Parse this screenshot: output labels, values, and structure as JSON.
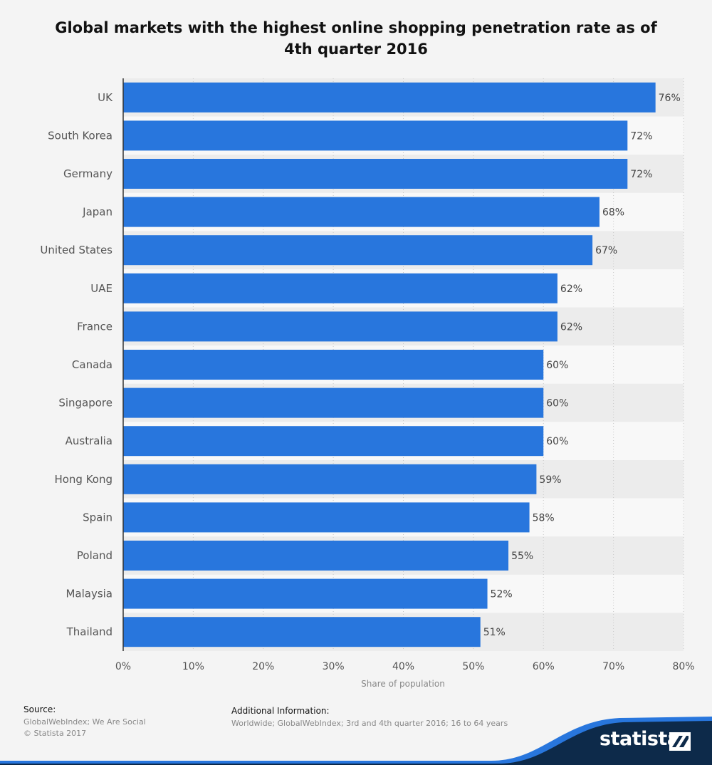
{
  "chart_data": {
    "type": "bar",
    "orientation": "horizontal",
    "title": "Global markets with the highest online shopping penetration rate as of 4th quarter 2016",
    "categories": [
      "UK",
      "South Korea",
      "Germany",
      "Japan",
      "United States",
      "UAE",
      "France",
      "Canada",
      "Singapore",
      "Australia",
      "Hong Kong",
      "Spain",
      "Poland",
      "Malaysia",
      "Thailand"
    ],
    "values": [
      76,
      72,
      72,
      68,
      67,
      62,
      62,
      60,
      60,
      60,
      59,
      58,
      55,
      52,
      51
    ],
    "value_labels": [
      "76%",
      "72%",
      "72%",
      "68%",
      "67%",
      "62%",
      "62%",
      "60%",
      "60%",
      "60%",
      "59%",
      "58%",
      "55%",
      "52%",
      "51%"
    ],
    "xlabel": "Share of population",
    "xlim": [
      0,
      80
    ],
    "xticks": [
      "0%",
      "10%",
      "20%",
      "30%",
      "40%",
      "50%",
      "60%",
      "70%",
      "80%"
    ],
    "grid": true,
    "bar_color": "#2876dd"
  },
  "footer": {
    "source_heading": "Source:",
    "source_line1": "GlobalWebIndex; We Are Social",
    "source_line2": "© Statista 2017",
    "info_heading": "Additional Information:",
    "info_text": "Worldwide; GlobalWebIndex; 3rd and 4th quarter 2016; 16 to 64 years"
  },
  "brand": {
    "name": "statista",
    "logo_icon": "statista-logo-icon",
    "dark_color": "#0d2a4a",
    "accent_color": "#2876dd"
  }
}
